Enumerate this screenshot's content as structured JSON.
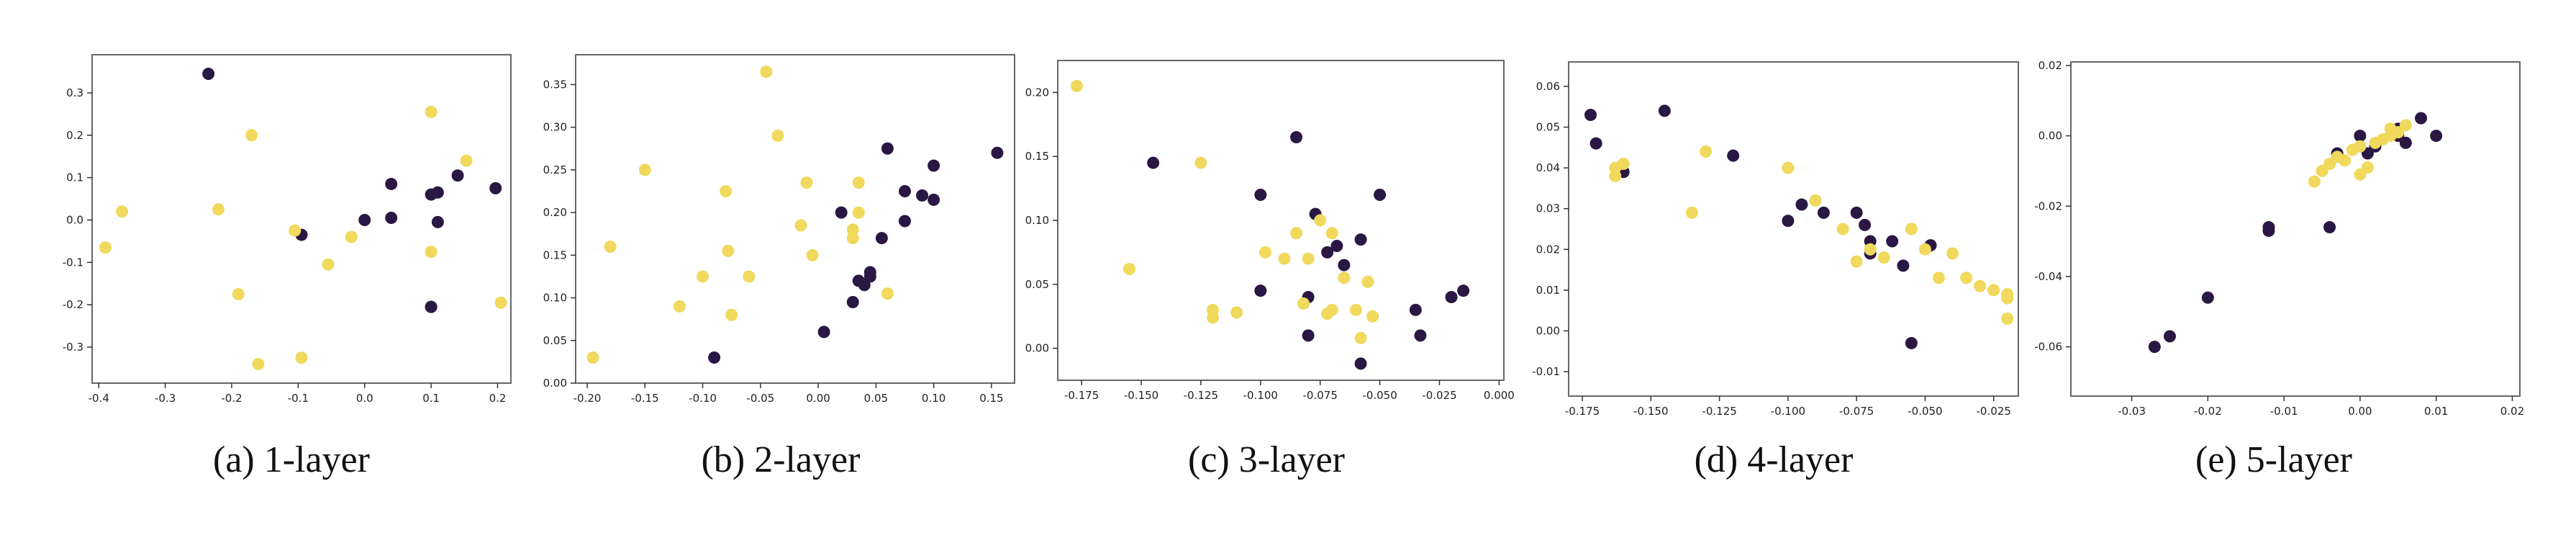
{
  "colors": {
    "class_a": "#2a1744",
    "class_b": "#f0d95c",
    "axes": "#666666"
  },
  "chart_data": [
    {
      "type": "scatter",
      "caption": "(a) 1-layer",
      "xlim": [
        -0.41,
        0.22
      ],
      "ylim": [
        -0.385,
        0.39
      ],
      "xticks": [
        -0.4,
        -0.3,
        -0.2,
        -0.1,
        0.0,
        0.1,
        0.2
      ],
      "xtick_labels": [
        "-0.4",
        "-0.3",
        "-0.2",
        "-0.1",
        "0.0",
        "0.1",
        "0.2"
      ],
      "yticks": [
        -0.3,
        -0.2,
        -0.1,
        0.0,
        0.1,
        0.2,
        0.3
      ],
      "ytick_labels": [
        "-0.3",
        "-0.2",
        "-0.1",
        "0.0",
        "0.1",
        "0.2",
        "0.3"
      ],
      "series": [
        {
          "color": "#2a1744",
          "x": [
            -0.235,
            -0.095,
            0.0,
            0.04,
            0.04,
            0.1,
            0.1,
            0.11,
            0.11,
            0.14,
            0.197,
            0.1
          ],
          "y": [
            0.345,
            -0.035,
            0.0,
            0.085,
            0.005,
            0.06,
            -0.205,
            0.065,
            -0.005,
            0.105,
            0.075,
            -0.205
          ]
        },
        {
          "color": "#f0d95c",
          "x": [
            -0.39,
            -0.365,
            -0.22,
            -0.17,
            -0.19,
            -0.16,
            -0.105,
            -0.095,
            -0.055,
            -0.02,
            0.1,
            0.1,
            0.153,
            0.205
          ],
          "y": [
            -0.065,
            0.02,
            0.025,
            0.2,
            -0.175,
            -0.34,
            -0.025,
            -0.325,
            -0.105,
            -0.04,
            0.255,
            -0.075,
            0.14,
            -0.195
          ]
        }
      ]
    },
    {
      "type": "scatter",
      "caption": "(b) 2-layer",
      "xlim": [
        -0.21,
        0.17
      ],
      "ylim": [
        0.0,
        0.385
      ],
      "xticks": [
        -0.2,
        -0.15,
        -0.1,
        -0.05,
        0.0,
        0.05,
        0.1,
        0.15
      ],
      "xtick_labels": [
        "-0.20",
        "-0.15",
        "-0.10",
        "-0.05",
        "0.00",
        "0.05",
        "0.10",
        "0.15"
      ],
      "yticks": [
        0.0,
        0.05,
        0.1,
        0.15,
        0.2,
        0.25,
        0.3,
        0.35
      ],
      "ytick_labels": [
        "0.00",
        "0.05",
        "0.10",
        "0.15",
        "0.20",
        "0.25",
        "0.30",
        "0.35"
      ],
      "series": [
        {
          "color": "#2a1744",
          "x": [
            -0.09,
            0.005,
            0.02,
            0.03,
            0.035,
            0.04,
            0.045,
            0.045,
            0.055,
            0.06,
            0.075,
            0.075,
            0.09,
            0.1,
            0.1,
            0.155
          ],
          "y": [
            0.03,
            0.06,
            0.2,
            0.095,
            0.12,
            0.115,
            0.125,
            0.13,
            0.17,
            0.275,
            0.19,
            0.225,
            0.22,
            0.215,
            0.255,
            0.27
          ]
        },
        {
          "color": "#f0d95c",
          "x": [
            -0.195,
            -0.18,
            -0.15,
            -0.12,
            -0.1,
            -0.08,
            -0.078,
            -0.075,
            -0.06,
            -0.045,
            -0.035,
            -0.015,
            -0.01,
            -0.005,
            0.03,
            0.03,
            0.035,
            0.035,
            0.06
          ],
          "y": [
            0.03,
            0.16,
            0.25,
            0.09,
            0.125,
            0.225,
            0.155,
            0.08,
            0.125,
            0.365,
            0.29,
            0.185,
            0.235,
            0.15,
            0.18,
            0.17,
            0.2,
            0.235,
            0.105
          ]
        }
      ]
    },
    {
      "type": "scatter",
      "caption": "(c) 3-layer",
      "xlim": [
        -0.185,
        0.002
      ],
      "ylim": [
        -0.025,
        0.225
      ],
      "xticks": [
        -0.175,
        -0.15,
        -0.125,
        -0.1,
        -0.075,
        -0.05,
        -0.025,
        0.0
      ],
      "xtick_labels": [
        "-0.175",
        "-0.150",
        "-0.125",
        "-0.100",
        "-0.075",
        "-0.050",
        "-0.025",
        "0.000"
      ],
      "yticks": [
        0.0,
        0.05,
        0.1,
        0.15,
        0.2
      ],
      "ytick_labels": [
        "0.00",
        "0.05",
        "0.10",
        "0.15",
        "0.20"
      ],
      "series": [
        {
          "color": "#2a1744",
          "x": [
            -0.145,
            -0.1,
            -0.1,
            -0.085,
            -0.08,
            -0.08,
            -0.077,
            -0.072,
            -0.068,
            -0.065,
            -0.058,
            -0.058,
            -0.05,
            -0.035,
            -0.033,
            -0.02,
            -0.015
          ],
          "y": [
            0.145,
            0.12,
            0.045,
            0.165,
            0.04,
            0.01,
            0.105,
            0.075,
            0.08,
            0.065,
            0.085,
            -0.012,
            0.12,
            0.03,
            0.01,
            0.04,
            0.045
          ]
        },
        {
          "color": "#f0d95c",
          "x": [
            -0.177,
            -0.155,
            -0.125,
            -0.12,
            -0.12,
            -0.11,
            -0.098,
            -0.09,
            -0.085,
            -0.082,
            -0.08,
            -0.075,
            -0.072,
            -0.07,
            -0.07,
            -0.065,
            -0.06,
            -0.058,
            -0.055,
            -0.053
          ],
          "y": [
            0.205,
            0.062,
            0.145,
            0.03,
            0.024,
            0.028,
            0.075,
            0.07,
            0.09,
            0.035,
            0.07,
            0.1,
            0.027,
            0.03,
            0.09,
            0.055,
            0.03,
            0.008,
            0.052,
            0.025
          ]
        }
      ]
    },
    {
      "type": "scatter",
      "caption": "(d) 4-layer",
      "xlim": [
        -0.18,
        -0.016
      ],
      "ylim": [
        -0.016,
        0.066
      ],
      "xticks": [
        -0.175,
        -0.15,
        -0.125,
        -0.1,
        -0.075,
        -0.05,
        -0.025
      ],
      "xtick_labels": [
        "-0.175",
        "-0.150",
        "-0.125",
        "-0.100",
        "-0.075",
        "-0.050",
        "-0.025"
      ],
      "yticks": [
        -0.01,
        0.0,
        0.01,
        0.02,
        0.03,
        0.04,
        0.05,
        0.06
      ],
      "ytick_labels": [
        "-0.01",
        "0.00",
        "0.01",
        "0.02",
        "0.03",
        "0.04",
        "0.05",
        "0.06"
      ],
      "series": [
        {
          "color": "#2a1744",
          "x": [
            -0.172,
            -0.17,
            -0.16,
            -0.145,
            -0.12,
            -0.1,
            -0.095,
            -0.087,
            -0.075,
            -0.072,
            -0.07,
            -0.07,
            -0.062,
            -0.058,
            -0.055,
            -0.048
          ],
          "y": [
            0.053,
            0.046,
            0.039,
            0.054,
            0.043,
            0.027,
            0.031,
            0.029,
            0.029,
            0.026,
            0.022,
            0.019,
            0.022,
            0.016,
            -0.003,
            0.021
          ]
        },
        {
          "color": "#f0d95c",
          "x": [
            -0.163,
            -0.163,
            -0.16,
            -0.13,
            -0.135,
            -0.1,
            -0.09,
            -0.08,
            -0.075,
            -0.07,
            -0.065,
            -0.055,
            -0.05,
            -0.045,
            -0.04,
            -0.035,
            -0.03,
            -0.025,
            -0.02,
            -0.02,
            -0.02
          ],
          "y": [
            0.04,
            0.038,
            0.041,
            0.044,
            0.029,
            0.04,
            0.032,
            0.025,
            0.017,
            0.02,
            0.018,
            0.025,
            0.02,
            0.013,
            0.019,
            0.013,
            0.011,
            0.01,
            0.008,
            0.009,
            0.003
          ]
        }
      ]
    },
    {
      "type": "scatter",
      "caption": "(e) 5-layer",
      "xlim": [
        -0.038,
        0.021
      ],
      "ylim": [
        -0.074,
        0.021
      ],
      "xticks": [
        -0.03,
        -0.02,
        -0.01,
        0.0,
        0.01,
        0.02
      ],
      "xtick_labels": [
        "-0.03",
        "-0.02",
        "-0.01",
        "0.00",
        "0.01",
        "0.02"
      ],
      "yticks": [
        -0.06,
        -0.04,
        -0.02,
        0.0,
        0.02
      ],
      "ytick_labels": [
        "-0.06",
        "-0.04",
        "-0.02",
        "0.00",
        "0.02"
      ],
      "series": [
        {
          "color": "#2a1744",
          "x": [
            -0.027,
            -0.025,
            -0.02,
            -0.012,
            -0.012,
            -0.004,
            -0.003,
            0.0,
            0.001,
            0.002,
            0.005,
            0.005,
            0.006,
            0.008,
            0.01
          ],
          "y": [
            -0.06,
            -0.057,
            -0.046,
            -0.026,
            -0.027,
            -0.026,
            -0.005,
            0.0,
            -0.005,
            -0.003,
            0.002,
            0.0,
            -0.002,
            0.005,
            0.0
          ]
        },
        {
          "color": "#f0d95c",
          "x": [
            -0.006,
            -0.005,
            -0.004,
            -0.003,
            -0.002,
            -0.001,
            0.0,
            0.0,
            0.001,
            0.002,
            0.003,
            0.004,
            0.004,
            0.005,
            0.006
          ],
          "y": [
            -0.013,
            -0.01,
            -0.008,
            -0.006,
            -0.007,
            -0.004,
            -0.003,
            -0.011,
            -0.009,
            -0.002,
            -0.001,
            0.0,
            0.002,
            0.001,
            0.003
          ]
        }
      ]
    }
  ]
}
